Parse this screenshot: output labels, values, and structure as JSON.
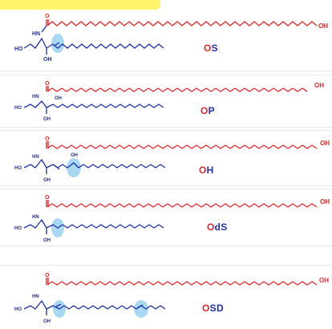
{
  "atoms": {
    "hn": "HN",
    "ho": "HO",
    "oh": "OH",
    "o": "O"
  },
  "panels": [
    {
      "id": "OS",
      "prefix": "O",
      "rest": "S",
      "trail": "|"
    },
    {
      "id": "OP",
      "prefix": "O",
      "rest": "P",
      "trail": ""
    },
    {
      "id": "OH",
      "prefix": "O",
      "rest": "H",
      "trail": ""
    },
    {
      "id": "OdS",
      "prefix": "O",
      "rest": "dS",
      "trail": ""
    },
    {
      "id": "OSD",
      "prefix": "O",
      "rest": "SD",
      "trail": ""
    }
  ],
  "colors": {
    "fatty_chain": "#e5262a",
    "sphingoid": "#1f2fa8",
    "highlight_circle": "#a9d8f2",
    "top_bar": "#fff36a"
  }
}
